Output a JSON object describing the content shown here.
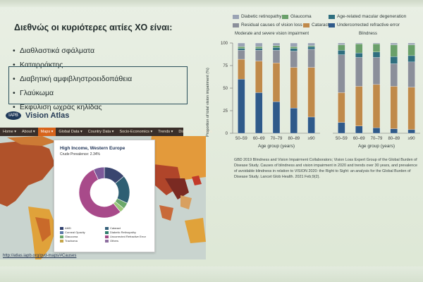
{
  "slide": {
    "title": "Διεθνώς οι κυριότερες αιτίες ΧΟ είναι:",
    "bullets": [
      "Διαθλαστικά σφάλματα",
      "Καταρράκτης",
      "Διαβητική αμφιβληστροειδοπάθεια",
      "Γλαύκωμα",
      "Εκφύλιση ωχράς κηλίδας"
    ],
    "highlighted_bullets": [
      2,
      3,
      4
    ]
  },
  "atlas": {
    "logo": "IAPB",
    "title": "Vision Atlas",
    "nav": [
      {
        "label": "Home ▾"
      },
      {
        "label": "About ▾"
      },
      {
        "label": "Maps ▾",
        "active": true
      },
      {
        "label": "Global Data ▾"
      },
      {
        "label": "Country Data ▾"
      },
      {
        "label": "Socio-Economics ▾"
      },
      {
        "label": "Trends ▾"
      },
      {
        "label": "Discover ▾"
      },
      {
        "label": "News"
      }
    ],
    "popup": {
      "title": "High Income, Western Europe",
      "subtitle": "Crude Prevalence: 2.34%",
      "legend": [
        {
          "label": "AMD",
          "color": "#2f3f6e"
        },
        {
          "label": "Cataract",
          "color": "#34607a"
        },
        {
          "label": "Corneal Opacity",
          "color": "#5b78a6"
        },
        {
          "label": "Diabetic Retinopathy",
          "color": "#2f7d6b"
        },
        {
          "label": "Glaucoma",
          "color": "#6aa86a"
        },
        {
          "label": "Uncorrected Refractive Error",
          "color": "#a24a86"
        },
        {
          "label": "Trachoma",
          "color": "#c6a64a"
        },
        {
          "label": "Others",
          "color": "#8d6ea0"
        }
      ],
      "slices": [
        {
          "label": "AMD",
          "value": 14,
          "color": "#3a466f"
        },
        {
          "label": "Cataract",
          "value": 18,
          "color": "#2e5f73"
        },
        {
          "label": "Glaucoma",
          "value": 4,
          "color": "#6aa86a"
        },
        {
          "label": "Diabetic Retinopathy",
          "value": 3,
          "color": "#9bc77a"
        },
        {
          "label": "Uncorrected Refractive Error",
          "value": 54,
          "color": "#a84a8a"
        },
        {
          "label": "Others",
          "value": 7,
          "color": "#7d5a9a"
        }
      ]
    },
    "url": "http://atlas.iapb.org/gvd-maps/#Causes"
  },
  "chart": {
    "legend": [
      {
        "label": "Diabetic retinopathy",
        "color": "#9aa3b4"
      },
      {
        "label": "Glaucoma",
        "color": "#6aa06a"
      },
      {
        "label": "Age-related macular degeneration",
        "color": "#2f6f7f"
      },
      {
        "label": "Residual causes of vision loss",
        "color": "#8b8f9a"
      },
      {
        "label": "Cataract",
        "color": "#c08a4a"
      },
      {
        "label": "Undercorrected refractive error",
        "color": "#2f5a8a"
      }
    ],
    "panel_left_title": "Moderate and severe vision impairment",
    "panel_right_title": "Blindness",
    "ylabel": "Proportion of total vision impairment (%)",
    "xlabel": "Age group (years)",
    "yticks": [
      "0",
      "25",
      "50",
      "75",
      "100"
    ],
    "categories": [
      "50–59",
      "60–69",
      "70–79",
      "80–89",
      "≥90"
    ],
    "caption": "GBD 2019 Blindness and Vision Impairment Collaborators; Vision Loss Expert Group of the Global Burden of Disease Study. Causes of blindness and vision impairment in 2020 and trends over 30 years, and prevalence of avoidable blindness in relation to VISION 2020: the Right to Sight: an analysis for the Global Burden of Disease Study. Lancet Glob Health. 2021 Feb;9(2)."
  },
  "chart_data": [
    {
      "type": "bar",
      "title": "Moderate and severe vision impairment",
      "xlabel": "Age group (years)",
      "ylabel": "Proportion of total vision impairment (%)",
      "ylim": [
        0,
        100
      ],
      "stacked": true,
      "categories": [
        "50–59",
        "60–69",
        "70–79",
        "80–89",
        "≥90"
      ],
      "series": [
        {
          "name": "Undercorrected refractive error",
          "color": "#2f5a8a",
          "values": [
            60,
            45,
            35,
            28,
            18
          ]
        },
        {
          "name": "Cataract",
          "color": "#c08a4a",
          "values": [
            22,
            35,
            43,
            45,
            55
          ]
        },
        {
          "name": "Residual causes of vision loss",
          "color": "#8b8f9a",
          "values": [
            10,
            12,
            14,
            18,
            20
          ]
        },
        {
          "name": "Age-related macular degeneration",
          "color": "#2f6f7f",
          "values": [
            2,
            2,
            3,
            3,
            3
          ]
        },
        {
          "name": "Glaucoma",
          "color": "#6aa06a",
          "values": [
            2,
            2,
            2,
            2,
            1
          ]
        },
        {
          "name": "Diabetic retinopathy",
          "color": "#9aa3b4",
          "values": [
            4,
            4,
            3,
            4,
            3
          ]
        }
      ]
    },
    {
      "type": "bar",
      "title": "Blindness",
      "xlabel": "Age group (years)",
      "ylim": [
        0,
        100
      ],
      "stacked": true,
      "categories": [
        "50–59",
        "60–69",
        "70–79",
        "80–89",
        "≥90"
      ],
      "series": [
        {
          "name": "Undercorrected refractive error",
          "color": "#2f5a8a",
          "values": [
            12,
            8,
            6,
            5,
            4
          ]
        },
        {
          "name": "Cataract",
          "color": "#c08a4a",
          "values": [
            33,
            44,
            48,
            47,
            47
          ]
        },
        {
          "name": "Residual causes of vision loss",
          "color": "#8b8f9a",
          "values": [
            42,
            32,
            30,
            25,
            28
          ]
        },
        {
          "name": "Age-related macular degeneration",
          "color": "#2f6f7f",
          "values": [
            5,
            5,
            6,
            8,
            7
          ]
        },
        {
          "name": "Glaucoma",
          "color": "#6aa06a",
          "values": [
            6,
            10,
            9,
            13,
            12
          ]
        },
        {
          "name": "Diabetic retinopathy",
          "color": "#9aa3b4",
          "values": [
            2,
            1,
            1,
            2,
            2
          ]
        }
      ]
    }
  ]
}
